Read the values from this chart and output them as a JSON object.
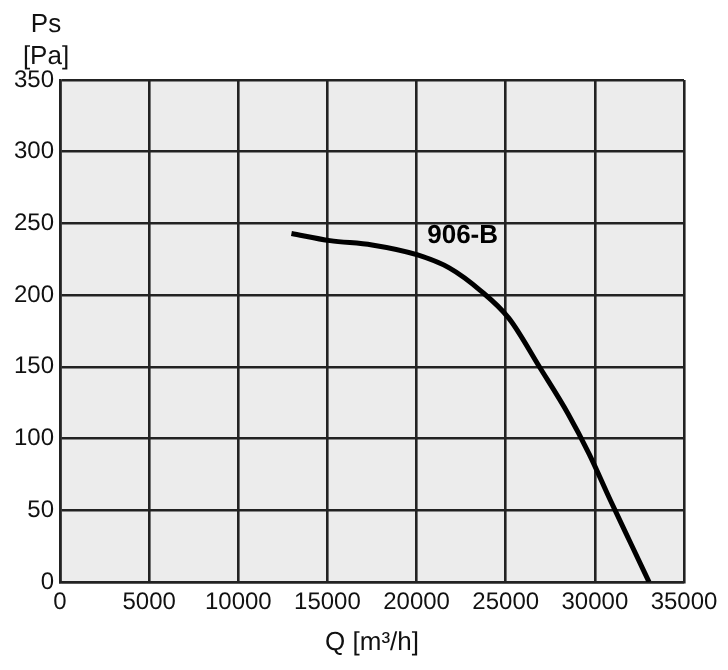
{
  "chart_data": {
    "type": "line",
    "xlabel": "Q [m³/h]",
    "ylabel": "Ps [Pa]",
    "xlim": [
      0,
      35000
    ],
    "xticks": [
      0,
      5000,
      10000,
      15000,
      20000,
      25000,
      30000,
      35000
    ],
    "ylim": [
      0,
      350
    ],
    "yticks": [
      0,
      50,
      100,
      150,
      200,
      250,
      300,
      350
    ],
    "grid": true,
    "legend": false,
    "marker": "none",
    "line_style": "solid",
    "series": [
      {
        "name": "906-B",
        "color": "#000000",
        "x": [
          12980,
          15140,
          17500,
          20060,
          21830,
          23600,
          25170,
          26940,
          28510,
          29690,
          30870,
          32050,
          33040
        ],
        "values": [
          243,
          238,
          235,
          228,
          219,
          203,
          184,
          149,
          117,
          89,
          57,
          26,
          0
        ]
      }
    ]
  }
}
